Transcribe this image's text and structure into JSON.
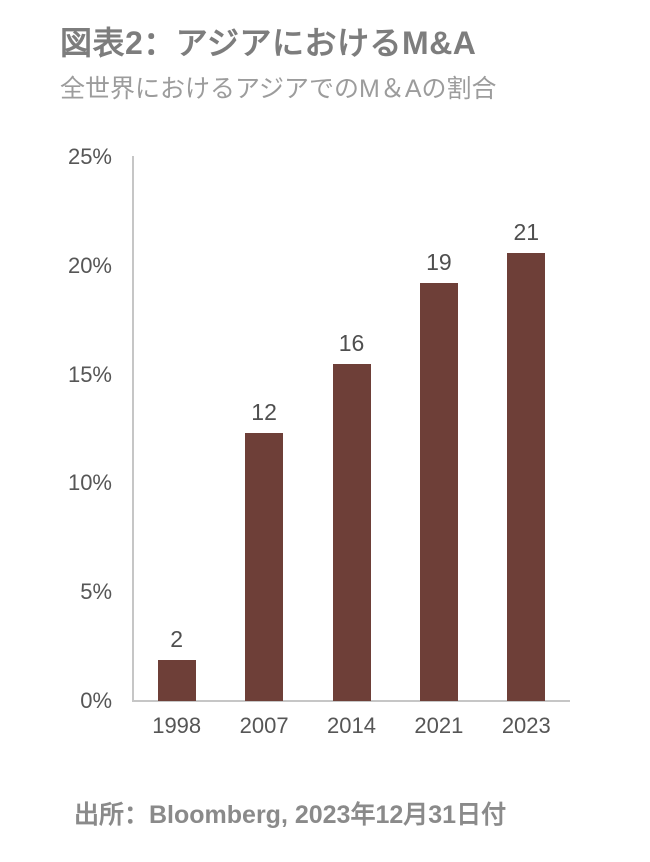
{
  "header": {
    "title_prefix": "図表2：アジアにおける",
    "title_latin": "M&A",
    "subtitle": "全世界におけるアジアでのM＆Aの割合"
  },
  "chart_data": {
    "type": "bar",
    "title": "図表2：アジアにおけるM&A",
    "subtitle": "全世界におけるアジアでのM＆Aの割合",
    "categories": [
      "1998",
      "2007",
      "2014",
      "2021",
      "2023"
    ],
    "values": [
      2,
      12,
      16,
      19,
      21
    ],
    "data_labels": [
      "2",
      "12",
      "16",
      "19",
      "21"
    ],
    "bar_heights_pct": [
      1.9,
      12.3,
      15.5,
      19.2,
      20.6
    ],
    "y_ticks": [
      "25%",
      "20%",
      "15%",
      "10%",
      "5%",
      "0%"
    ],
    "ylim": [
      0,
      25
    ],
    "xlabel": "",
    "ylabel": "",
    "grid": false,
    "legend": "none"
  },
  "footer": {
    "source": "出所：Bloomberg, 2023年12月31日付"
  },
  "colors": {
    "background": "#ffffff",
    "bar": "#6e3f38",
    "title": "#7d7d7d",
    "subtitle": "#9c9c9c",
    "tick_label": "#565656",
    "data_label": "#4f4f4f",
    "axis_line": "#c6c6c6",
    "source": "#8a8a8a"
  }
}
